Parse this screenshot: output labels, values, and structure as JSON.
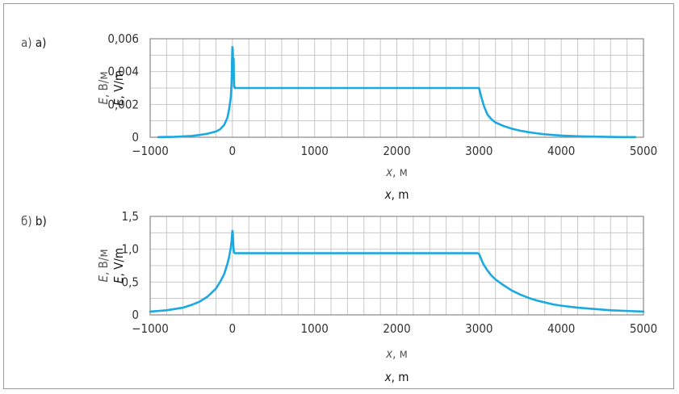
{
  "colors": {
    "series": "#1ba9e1",
    "grid": "#c8c8c8",
    "frame": "#9a9a9a"
  },
  "chart_data": [
    {
      "type": "line",
      "panel_label_ru": "а)",
      "panel_label_en": "a)",
      "ylabel_ru": "E, В/м",
      "ylabel_en": "E, V/m",
      "xlabel_ru": "x, м",
      "xlabel_en": "x, m",
      "xlim": [
        -1000,
        5000
      ],
      "ylim": [
        0,
        0.006
      ],
      "x_ticks": [
        -1000,
        0,
        1000,
        2000,
        3000,
        4000,
        5000
      ],
      "x_tick_labels": [
        "−1000",
        "0",
        "1000",
        "2000",
        "3000",
        "4000",
        "5000"
      ],
      "y_ticks": [
        0,
        0.002,
        0.004,
        0.006
      ],
      "y_tick_labels": [
        "0",
        "0,002",
        "0,004",
        "0,006"
      ],
      "grid": true,
      "series": [
        {
          "x": [
            -900,
            -700,
            -500,
            -400,
            -300,
            -200,
            -150,
            -100,
            -60,
            -40,
            -20,
            -10,
            -5,
            0,
            5,
            10,
            15,
            20,
            25,
            30,
            50,
            500,
            1000,
            1500,
            2000,
            2500,
            2980,
            3000,
            3010,
            3030,
            3060,
            3100,
            3150,
            3200,
            3300,
            3400,
            3500,
            3600,
            3700,
            3800,
            3900,
            4000,
            4200,
            4400,
            4600,
            4800,
            4900
          ],
          "y": [
            1e-05,
            3e-05,
            8e-05,
            0.00014,
            0.00022,
            0.00035,
            0.00048,
            0.00075,
            0.0012,
            0.0017,
            0.0024,
            0.0033,
            0.0045,
            0.0055,
            0.0053,
            0.0036,
            0.0048,
            0.0031,
            0.0031,
            0.003,
            0.003,
            0.003,
            0.003,
            0.003,
            0.003,
            0.003,
            0.003,
            0.003,
            0.0028,
            0.0024,
            0.0019,
            0.0014,
            0.0011,
            0.0009,
            0.00068,
            0.00052,
            0.0004,
            0.00031,
            0.00024,
            0.00018,
            0.00014,
            0.0001,
            6e-05,
            4e-05,
            2e-05,
            1e-05,
            1e-05
          ]
        }
      ]
    },
    {
      "type": "line",
      "panel_label_ru": "б)",
      "panel_label_en": "b)",
      "ylabel_ru": "E, В/м",
      "ylabel_en": "E, V/m",
      "xlabel_ru": "x, м",
      "xlabel_en": "x, m",
      "xlim": [
        -1000,
        5000
      ],
      "ylim": [
        0,
        1.5
      ],
      "x_ticks": [
        -1000,
        0,
        1000,
        2000,
        3000,
        4000,
        5000
      ],
      "x_tick_labels": [
        "−1000",
        "0",
        "1000",
        "2000",
        "3000",
        "4000",
        "5000"
      ],
      "y_ticks": [
        0,
        0.5,
        1.0,
        1.5
      ],
      "y_tick_labels": [
        "0",
        "0,5",
        "1,0",
        "1,5"
      ],
      "grid": true,
      "series": [
        {
          "x": [
            -1000,
            -900,
            -800,
            -700,
            -600,
            -500,
            -400,
            -300,
            -200,
            -150,
            -100,
            -60,
            -40,
            -20,
            -10,
            0,
            5,
            10,
            15,
            20,
            30,
            60,
            500,
            1000,
            1500,
            2000,
            2500,
            2980,
            3000,
            3020,
            3050,
            3100,
            3150,
            3200,
            3300,
            3400,
            3500,
            3600,
            3700,
            3800,
            3900,
            4000,
            4200,
            4400,
            4600,
            4800,
            5000
          ],
          "y": [
            0.05,
            0.06,
            0.07,
            0.09,
            0.11,
            0.15,
            0.2,
            0.28,
            0.4,
            0.5,
            0.62,
            0.78,
            0.88,
            1.02,
            1.12,
            1.28,
            1.25,
            1.1,
            1.0,
            0.95,
            0.94,
            0.94,
            0.94,
            0.94,
            0.94,
            0.94,
            0.94,
            0.94,
            0.93,
            0.87,
            0.78,
            0.68,
            0.6,
            0.54,
            0.45,
            0.37,
            0.31,
            0.26,
            0.22,
            0.19,
            0.16,
            0.14,
            0.11,
            0.09,
            0.07,
            0.06,
            0.05
          ]
        }
      ]
    }
  ]
}
